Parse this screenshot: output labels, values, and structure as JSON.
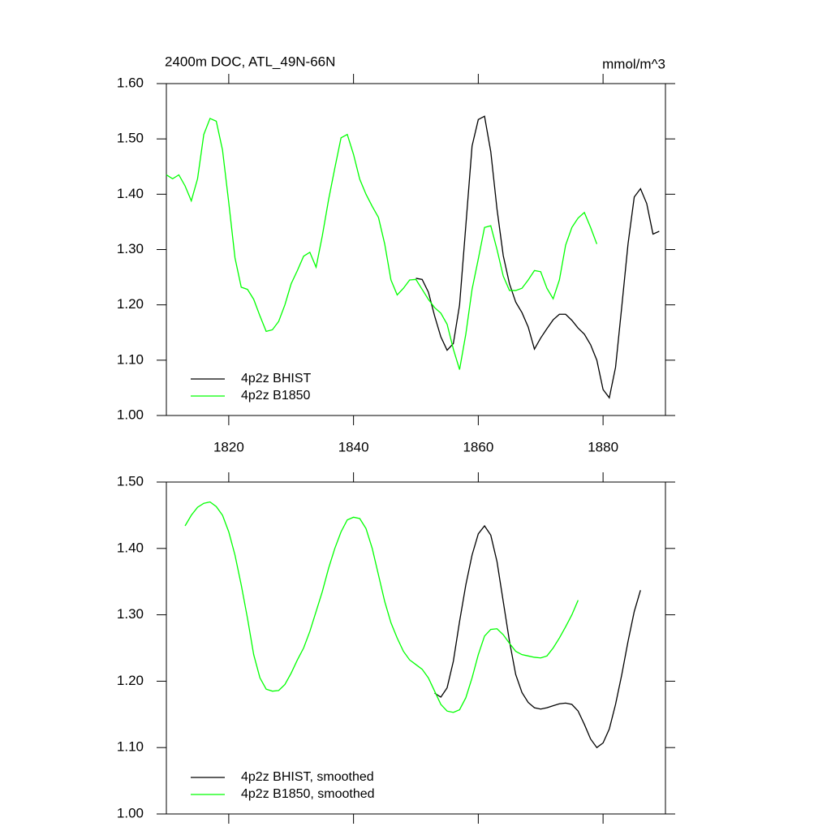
{
  "chart_data": [
    {
      "type": "line",
      "title": "2400m DOC, ATL_49N-66N",
      "units_label": "mmol/m^3",
      "xlim": [
        1810,
        1890
      ],
      "xticks": [
        1820,
        1840,
        1860,
        1880
      ],
      "xtick_labels": true,
      "ylim": [
        1.0,
        1.6
      ],
      "yticks": [
        {
          "value": 1.0,
          "label": "1.00"
        },
        {
          "value": 1.1,
          "label": "1.10"
        },
        {
          "value": 1.2,
          "label": "1.20"
        },
        {
          "value": 1.3,
          "label": "1.30"
        },
        {
          "value": 1.4,
          "label": "1.40"
        },
        {
          "value": 1.5,
          "label": "1.50"
        },
        {
          "value": 1.6,
          "label": "1.60"
        }
      ],
      "legend": "lower left",
      "series": [
        {
          "name": "4p2z BHIST",
          "color": "#000000",
          "x": [
            1850,
            1851,
            1852,
            1853,
            1854,
            1855,
            1856,
            1857,
            1858,
            1859,
            1860,
            1861,
            1862,
            1863,
            1864,
            1865,
            1866,
            1867,
            1868,
            1869,
            1870,
            1871,
            1872,
            1873,
            1874,
            1875,
            1876,
            1877,
            1878,
            1879,
            1880,
            1881,
            1882,
            1883,
            1884,
            1885,
            1886,
            1887,
            1888,
            1889
          ],
          "values": [
            1.248,
            1.246,
            1.223,
            1.18,
            1.142,
            1.118,
            1.13,
            1.2,
            1.343,
            1.487,
            1.535,
            1.541,
            1.477,
            1.373,
            1.289,
            1.238,
            1.205,
            1.186,
            1.16,
            1.12,
            1.14,
            1.157,
            1.173,
            1.183,
            1.183,
            1.172,
            1.158,
            1.147,
            1.128,
            1.1,
            1.047,
            1.032,
            1.087,
            1.197,
            1.31,
            1.395,
            1.41,
            1.383,
            1.328,
            1.333
          ]
        },
        {
          "name": "4p2z B1850",
          "color": "#00ff00",
          "x": [
            1810,
            1811,
            1812,
            1813,
            1814,
            1815,
            1816,
            1817,
            1818,
            1819,
            1820,
            1821,
            1822,
            1823,
            1824,
            1825,
            1826,
            1827,
            1828,
            1829,
            1830,
            1831,
            1832,
            1833,
            1834,
            1835,
            1836,
            1837,
            1838,
            1839,
            1840,
            1841,
            1842,
            1843,
            1844,
            1845,
            1846,
            1847,
            1848,
            1849,
            1850,
            1851,
            1852,
            1853,
            1854,
            1855,
            1856,
            1857,
            1858,
            1859,
            1860,
            1861,
            1862,
            1863,
            1864,
            1865,
            1866,
            1867,
            1868,
            1869,
            1870,
            1871,
            1872,
            1873,
            1874,
            1875,
            1876,
            1877,
            1878,
            1879
          ],
          "values": [
            1.435,
            1.428,
            1.435,
            1.415,
            1.388,
            1.428,
            1.508,
            1.537,
            1.532,
            1.48,
            1.385,
            1.285,
            1.232,
            1.228,
            1.21,
            1.18,
            1.152,
            1.155,
            1.17,
            1.2,
            1.238,
            1.262,
            1.288,
            1.295,
            1.268,
            1.325,
            1.39,
            1.447,
            1.502,
            1.508,
            1.472,
            1.427,
            1.4,
            1.378,
            1.358,
            1.31,
            1.245,
            1.218,
            1.23,
            1.245,
            1.246,
            1.228,
            1.21,
            1.195,
            1.185,
            1.165,
            1.12,
            1.083,
            1.147,
            1.228,
            1.283,
            1.34,
            1.343,
            1.3,
            1.252,
            1.226,
            1.226,
            1.23,
            1.245,
            1.262,
            1.26,
            1.23,
            1.211,
            1.245,
            1.308,
            1.34,
            1.357,
            1.367,
            1.34,
            1.31
          ]
        }
      ]
    },
    {
      "type": "line",
      "xlim": [
        1810,
        1890
      ],
      "xticks": [
        1820,
        1840,
        1860,
        1880
      ],
      "xtick_labels": false,
      "ylim": [
        1.0,
        1.5
      ],
      "yticks": [
        {
          "value": 1.0,
          "label": "1.00"
        },
        {
          "value": 1.1,
          "label": "1.10"
        },
        {
          "value": 1.2,
          "label": "1.20"
        },
        {
          "value": 1.3,
          "label": "1.30"
        },
        {
          "value": 1.4,
          "label": "1.40"
        },
        {
          "value": 1.5,
          "label": "1.50"
        }
      ],
      "legend": "lower left",
      "series": [
        {
          "name": "4p2z BHIST, smoothed",
          "color": "#000000",
          "x": [
            1853,
            1854,
            1855,
            1856,
            1857,
            1858,
            1859,
            1860,
            1861,
            1862,
            1863,
            1864,
            1865,
            1866,
            1867,
            1868,
            1869,
            1870,
            1871,
            1872,
            1873,
            1874,
            1875,
            1876,
            1877,
            1878,
            1879,
            1880,
            1881,
            1882,
            1883,
            1884,
            1885,
            1886
          ],
          "values": [
            1.182,
            1.176,
            1.19,
            1.23,
            1.29,
            1.345,
            1.39,
            1.422,
            1.434,
            1.42,
            1.38,
            1.32,
            1.26,
            1.21,
            1.183,
            1.168,
            1.16,
            1.158,
            1.16,
            1.163,
            1.166,
            1.167,
            1.165,
            1.155,
            1.135,
            1.113,
            1.1,
            1.107,
            1.128,
            1.165,
            1.21,
            1.26,
            1.305,
            1.337
          ]
        },
        {
          "name": "4p2z B1850, smoothed",
          "color": "#00ff00",
          "x": [
            1813,
            1814,
            1815,
            1816,
            1817,
            1818,
            1819,
            1820,
            1821,
            1822,
            1823,
            1824,
            1825,
            1826,
            1827,
            1828,
            1829,
            1830,
            1831,
            1832,
            1833,
            1834,
            1835,
            1836,
            1837,
            1838,
            1839,
            1840,
            1841,
            1842,
            1843,
            1844,
            1845,
            1846,
            1847,
            1848,
            1849,
            1850,
            1851,
            1852,
            1853,
            1854,
            1855,
            1856,
            1857,
            1858,
            1859,
            1860,
            1861,
            1862,
            1863,
            1864,
            1865,
            1866,
            1867,
            1868,
            1869,
            1870,
            1871,
            1872,
            1873,
            1874,
            1875,
            1876
          ],
          "values": [
            1.434,
            1.45,
            1.462,
            1.468,
            1.47,
            1.463,
            1.45,
            1.425,
            1.39,
            1.345,
            1.295,
            1.24,
            1.205,
            1.188,
            1.185,
            1.186,
            1.195,
            1.212,
            1.232,
            1.25,
            1.275,
            1.305,
            1.335,
            1.37,
            1.4,
            1.425,
            1.443,
            1.447,
            1.445,
            1.43,
            1.4,
            1.36,
            1.32,
            1.288,
            1.265,
            1.245,
            1.232,
            1.225,
            1.218,
            1.205,
            1.185,
            1.165,
            1.155,
            1.153,
            1.157,
            1.175,
            1.205,
            1.24,
            1.268,
            1.278,
            1.279,
            1.27,
            1.257,
            1.245,
            1.24,
            1.238,
            1.236,
            1.235,
            1.238,
            1.25,
            1.265,
            1.282,
            1.3,
            1.322
          ]
        }
      ]
    }
  ]
}
